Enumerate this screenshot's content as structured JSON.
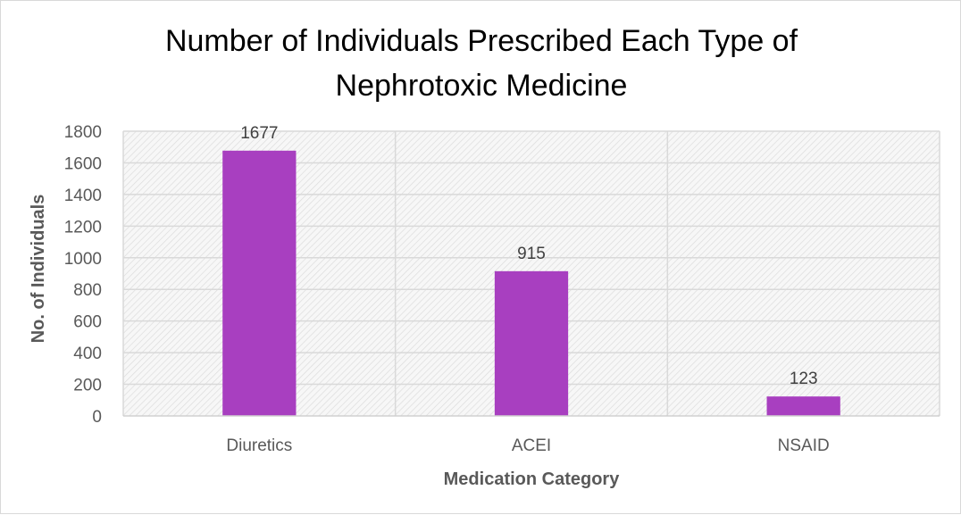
{
  "chart_data": {
    "type": "bar",
    "title_lines": [
      "Number of Individuals Prescribed Each Type of",
      "Nephrotoxic Medicine"
    ],
    "xlabel": "Medication Category",
    "ylabel": "No. of Individuals",
    "categories": [
      "Diuretics",
      "ACEI",
      "NSAID"
    ],
    "values": [
      1677,
      915,
      123
    ],
    "data_labels": [
      "1677",
      "915",
      "123"
    ],
    "ylim": [
      0,
      1800
    ],
    "y_ticks": [
      0,
      200,
      400,
      600,
      800,
      1000,
      1200,
      1400,
      1600,
      1800
    ],
    "bar_color": "#a83fc0",
    "grid": true,
    "plot_background": "hatched light gray",
    "legend": "none"
  }
}
